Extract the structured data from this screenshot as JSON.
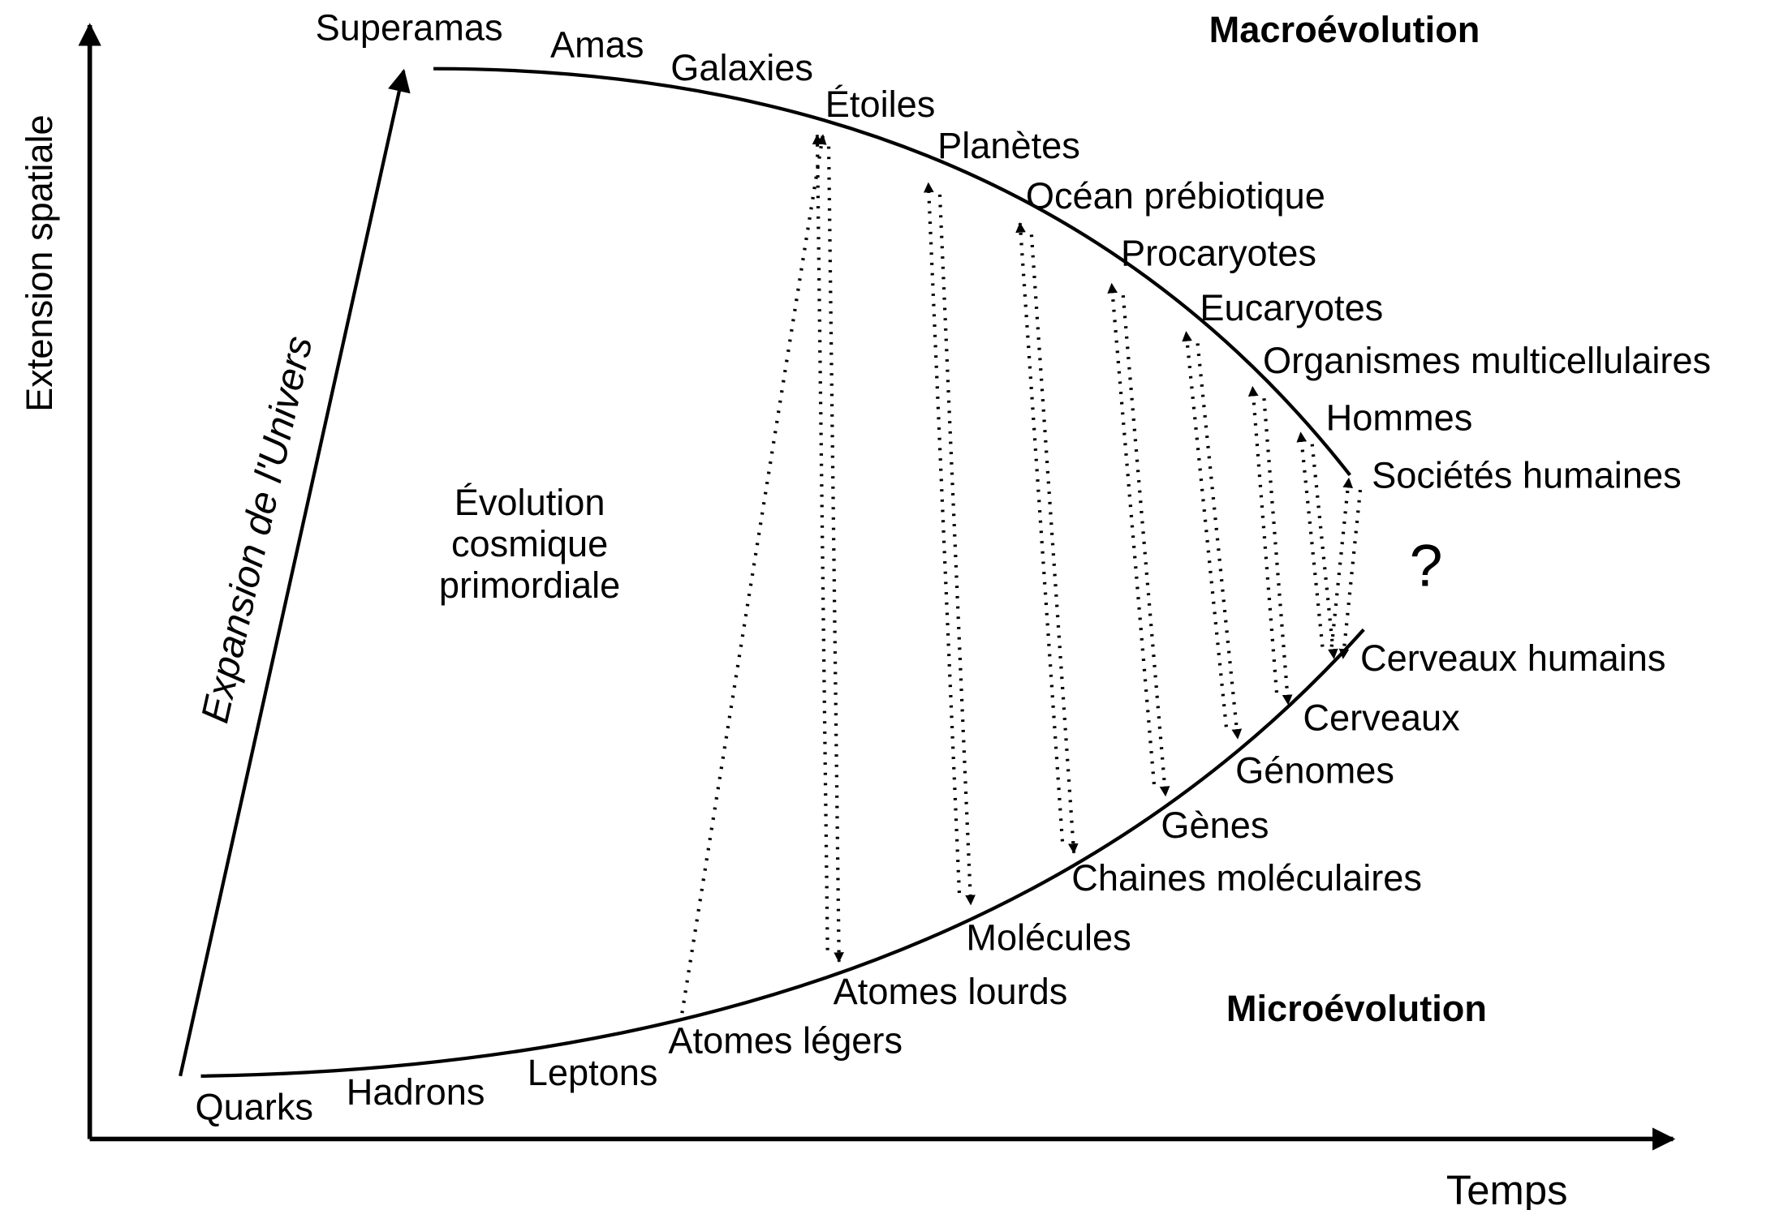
{
  "axes": {
    "y_label": "Extension spatiale",
    "x_label": "Temps"
  },
  "macro_title": "Macroévolution",
  "micro_title": "Microévolution",
  "expansion_label": "Expansion de l'Univers",
  "center_label": [
    "Évolution",
    "cosmique",
    "primordiale"
  ],
  "question": "?",
  "macro_nodes": [
    "Superamas",
    "Amas",
    "Galaxies",
    "Étoiles",
    "Planètes",
    "Océan prébiotique",
    "Procaryotes",
    "Eucaryotes",
    "Organismes multicellulaires",
    "Hommes",
    "Sociétés humaines"
  ],
  "micro_nodes": [
    "Quarks",
    "Hadrons",
    "Leptons",
    "Atomes légers",
    "Atomes lourds",
    "Molécules",
    "Chaines moléculaires",
    "Gènes",
    "Génomes",
    "Cerveaux",
    "Cerveaux humains"
  ]
}
